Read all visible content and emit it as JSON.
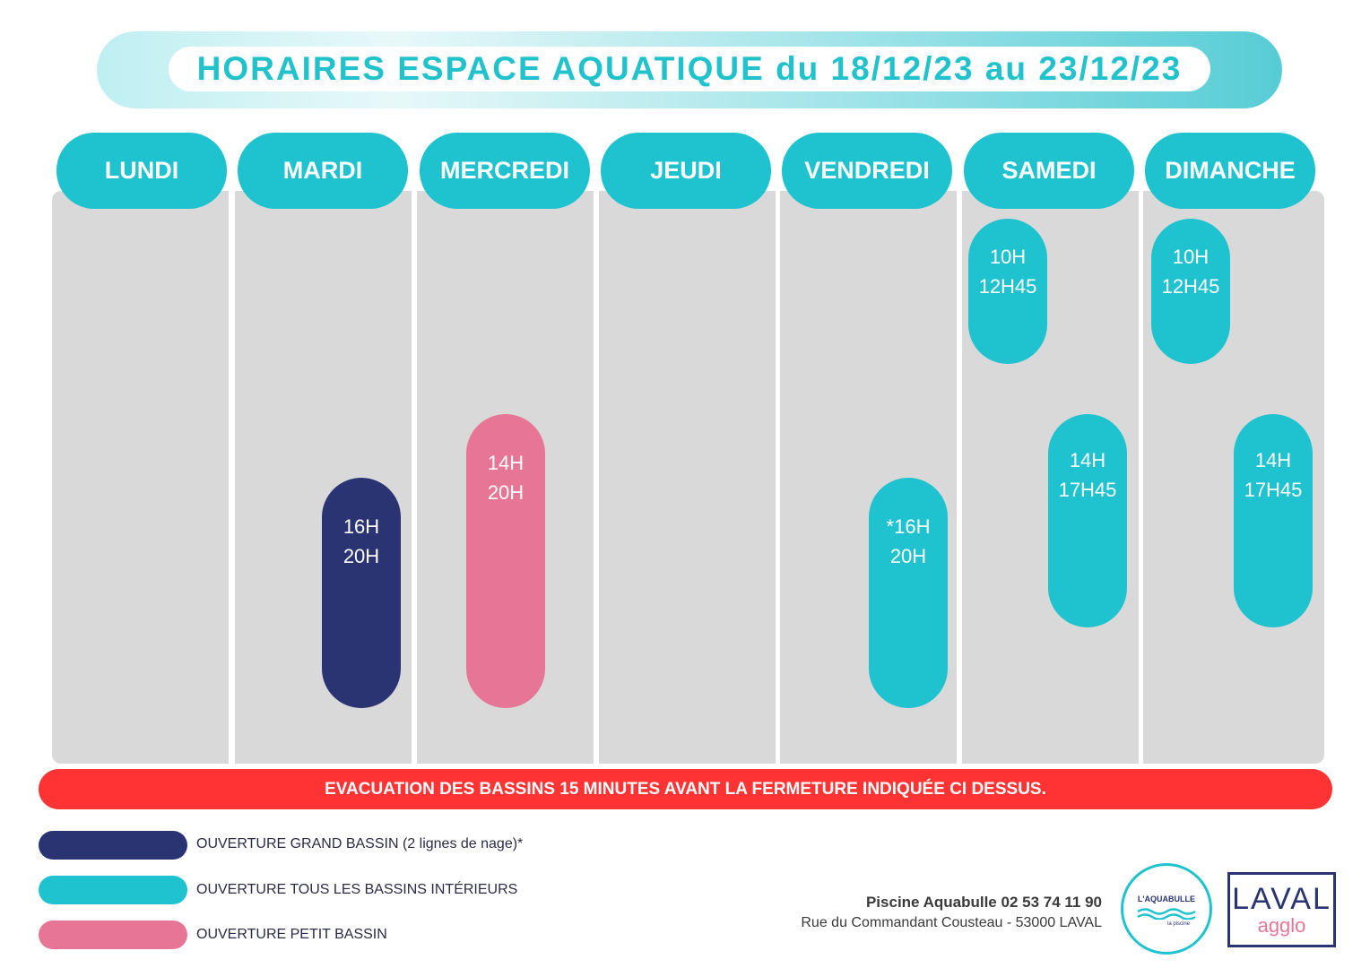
{
  "header": {
    "title": "HORAIRES ESPACE AQUATIQUE du 18/12/23 au 23/12/23"
  },
  "days": [
    {
      "label": "LUNDI",
      "slots": []
    },
    {
      "label": "MARDI",
      "slots": [
        {
          "start": "16H",
          "end": "20H",
          "type": "grand_bassin"
        }
      ]
    },
    {
      "label": "MERCREDI",
      "slots": [
        {
          "start": "14H",
          "end": "20H",
          "type": "petit_bassin"
        }
      ]
    },
    {
      "label": "JEUDI",
      "slots": []
    },
    {
      "label": "VENDREDI",
      "slots": [
        {
          "start": "*16H",
          "end": "20H",
          "type": "tous_bassins"
        }
      ]
    },
    {
      "label": "SAMEDI",
      "slots": [
        {
          "start": "10H",
          "end": "12H45",
          "type": "tous_bassins"
        },
        {
          "start": "14H",
          "end": "17H45",
          "type": "tous_bassins"
        }
      ]
    },
    {
      "label": "DIMANCHE",
      "slots": [
        {
          "start": "10H",
          "end": "12H45",
          "type": "tous_bassins"
        },
        {
          "start": "14H",
          "end": "17H45",
          "type": "tous_bassins"
        }
      ]
    }
  ],
  "warning": "EVACUATION DES BASSINS  15 MINUTES AVANT LA FERMETURE INDIQUÉE CI DESSUS.",
  "legend": [
    {
      "label": "OUVERTURE GRAND BASSIN (2 lignes de nage)*",
      "color": "#2a3472"
    },
    {
      "label": "OUVERTURE TOUS LES BASSINS INTÉRIEURS",
      "color": "#1fc3cf"
    },
    {
      "label": "OUVERTURE PETIT BASSIN",
      "color": "#e77696"
    }
  ],
  "contact": {
    "name_phone": "Piscine Aquabulle 02 53 74 11 90",
    "address": "Rue du Commandant Cousteau - 53000 LAVAL"
  },
  "logos": {
    "aquabulle": {
      "name": "L'AQUABULLE",
      "sub": "la piscine"
    },
    "laval": {
      "line1": "LAVAL",
      "line2": "agglo"
    }
  },
  "colors": {
    "accent": "#1fc3cf",
    "grand_bassin": "#2a3472",
    "tous_bassins": "#1fc3cf",
    "petit_bassin": "#e77696",
    "warning": "#ff3333",
    "column_bg": "#d9d9d9"
  }
}
